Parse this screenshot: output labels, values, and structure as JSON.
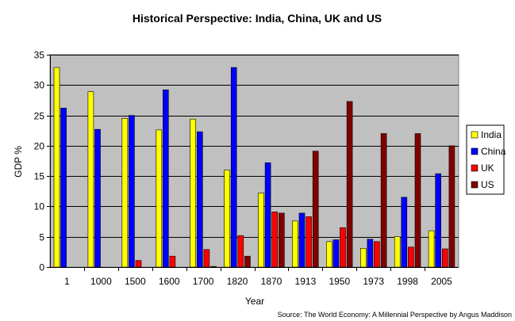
{
  "chart_data": {
    "type": "bar",
    "title": "Historical Perspective: India, China, UK and US",
    "xlabel": "Year",
    "ylabel": "GDP %",
    "ylim": [
      0,
      35
    ],
    "ytick_step": 5,
    "grid": true,
    "legend_position": "right",
    "categories": [
      "1",
      "1000",
      "1500",
      "1600",
      "1700",
      "1820",
      "1870",
      "1913",
      "1950",
      "1973",
      "1998",
      "2005"
    ],
    "series": [
      {
        "name": "India",
        "color": "#ffff00",
        "values": [
          32.9,
          28.9,
          24.5,
          22.6,
          24.4,
          16.0,
          12.2,
          7.6,
          4.2,
          3.1,
          5.0,
          6.0
        ]
      },
      {
        "name": "China",
        "color": "#0000ff",
        "values": [
          26.2,
          22.7,
          25.0,
          29.2,
          22.3,
          32.9,
          17.2,
          8.9,
          4.5,
          4.6,
          11.5,
          15.4
        ]
      },
      {
        "name": "UK",
        "color": "#ff0000",
        "values": [
          0.0,
          0.0,
          1.1,
          1.8,
          2.9,
          5.2,
          9.1,
          8.3,
          6.5,
          4.2,
          3.3,
          3.0
        ]
      },
      {
        "name": "US",
        "color": "#800000",
        "values": [
          0.0,
          0.0,
          0.0,
          0.0,
          0.1,
          1.8,
          8.9,
          19.1,
          27.3,
          22.0,
          22.0,
          20.0
        ]
      }
    ],
    "source": "Source: The World Economy: A Millennial Perspective by Angus Maddison",
    "plot_background": "#c0c0c0"
  }
}
